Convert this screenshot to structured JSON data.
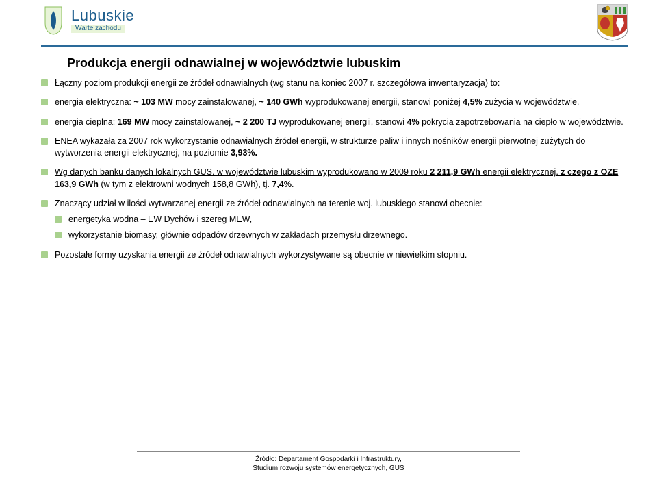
{
  "logo": {
    "main": "Lubuskie",
    "sub": "Warte zachodu"
  },
  "colors": {
    "header_rule": "#2a6a99",
    "bullet": "#a9d18e",
    "logo_text": "#1b5c8c",
    "logo_sub_bg": "#e8f4d8",
    "crest_top": "#d8d8d8",
    "crest_left": "#d4a617",
    "crest_right": "#c1352c",
    "crest_green": "#3a8f3a"
  },
  "title": "Produkcja energii odnawialnej w województwie lubuskim",
  "items": [
    {
      "html": "Łączny poziom produkcji energii ze źródeł odnawialnych (wg stanu na koniec 2007 r. szczegółowa inwentaryzacja) to:"
    },
    {
      "html": "energia elektryczna: <b>~ 103 MW</b> mocy zainstalowanej, <b>~ 140 GWh</b> wyprodukowanej energii, stanowi poniżej <b>4,5%</b> zużycia w województwie,"
    },
    {
      "html": "energia cieplna: <b>169 MW</b> mocy zainstalowanej, <b>~ 2 200 TJ</b> wyprodukowanej energii, stanowi <b>4%</b> pokrycia zapotrzebowania na ciepło w województwie."
    },
    {
      "html": "ENEA wykazała za 2007 rok wykorzystanie odnawialnych źródeł energii, w strukturze paliw i innych nośników energii pierwotnej zużytych do wytworzenia energii elektrycznej, na poziomie <b>3,93%.</b>"
    },
    {
      "html": "<u>Wg danych banku danych lokalnych GUS, w województwie lubuskim wyprodukowano w 2009 roku <b>2 211,9 GWh</b> energii elektrycznej, <b>z czego z OZE 163,9 GWh</b> (w tym z elektrowni wodnych 158,8 GWh), tj. <b>7,4%</b>.</u>"
    },
    {
      "html": "Znaczący udział w ilości wytwarzanej energii ze źródeł odnawialnych na terenie woj. lubuskiego stanowi obecnie:",
      "sub": [
        "energetyka wodna – EW Dychów i szereg MEW,",
        "wykorzystanie biomasy, głównie odpadów drzewnych w zakładach przemysłu drzewnego."
      ]
    },
    {
      "html": "Pozostałe formy uzyskania energii ze źródeł odnawialnych wykorzystywane są obecnie w niewielkim stopniu."
    }
  ],
  "footer": {
    "line1": "Źródło: Departament Gospodarki i Infrastruktury,",
    "line2": "Studium rozwoju systemów energetycznych, GUS"
  }
}
